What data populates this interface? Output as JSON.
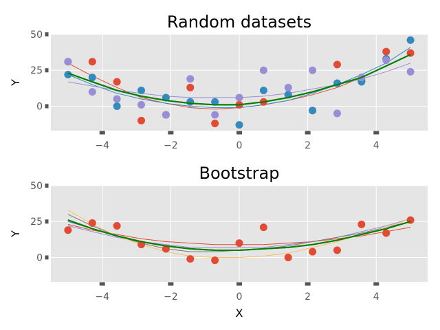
{
  "chart_data": [
    {
      "type": "scatter",
      "title": "Random datasets",
      "xlabel": "",
      "ylabel": "Y",
      "xlim": [
        -5.5,
        5.5
      ],
      "ylim": [
        -17,
        50
      ],
      "xticks": [
        -4,
        -2,
        0,
        2,
        4
      ],
      "xtick_labels": [
        "−4",
        "−2",
        "0",
        "2",
        "4"
      ],
      "yticks": [
        0,
        25,
        50
      ],
      "ytick_labels": [
        "0",
        "25",
        "50"
      ],
      "grid": true,
      "x": [
        -5.0,
        -4.29,
        -3.57,
        -2.86,
        -2.14,
        -1.43,
        -0.71,
        0.0,
        0.71,
        1.43,
        2.14,
        2.86,
        3.57,
        4.29,
        5.0
      ],
      "series": [
        {
          "color": "#e24a33",
          "points": [
            31,
            31,
            17,
            -10,
            -6,
            13,
            -12,
            1,
            3,
            8,
            -3,
            29,
            18,
            38,
            37
          ],
          "fit": [
            30,
            21,
            13,
            6,
            2,
            -1,
            -2,
            -1,
            1,
            4,
            8,
            13,
            20,
            28,
            36
          ]
        },
        {
          "color": "#348abd",
          "points": [
            22,
            20,
            0,
            11,
            6,
            3,
            3,
            -13,
            11,
            8,
            -3,
            16,
            17,
            33,
            46
          ],
          "fit": [
            22,
            15,
            9,
            5,
            2,
            0,
            -1,
            -1,
            1,
            4,
            9,
            15,
            22,
            30,
            41
          ]
        },
        {
          "color": "#988ed5",
          "points": [
            31,
            10,
            5,
            1,
            -6,
            19,
            -6,
            6,
            25,
            13,
            25,
            -5,
            20,
            32,
            24
          ],
          "fit": [
            17,
            14,
            11,
            9,
            7,
            6,
            6,
            6,
            7,
            9,
            12,
            15,
            19,
            24,
            30
          ]
        }
      ],
      "mean_fit": {
        "color": "#007f00",
        "values": [
          23,
          17,
          11,
          7,
          4,
          2,
          1,
          1,
          3,
          6,
          10,
          15,
          20,
          28,
          36
        ]
      }
    },
    {
      "type": "scatter",
      "title": "Bootstrap",
      "xlabel": "X",
      "ylabel": "Y",
      "xlim": [
        -5.5,
        5.5
      ],
      "ylim": [
        -17,
        50
      ],
      "xticks": [
        -4,
        -2,
        0,
        2,
        4
      ],
      "xtick_labels": [
        "−4",
        "−2",
        "0",
        "2",
        "4"
      ],
      "yticks": [
        0,
        25,
        50
      ],
      "ytick_labels": [
        "0",
        "25",
        "50"
      ],
      "grid": true,
      "x": [
        -5.0,
        -4.29,
        -3.57,
        -2.86,
        -2.14,
        -1.43,
        -0.71,
        0.0,
        0.71,
        1.43,
        2.14,
        2.86,
        3.57,
        4.29,
        5.0
      ],
      "series": [
        {
          "color": "#e24a33",
          "points": [
            19,
            24,
            22,
            9,
            6,
            -1,
            -2,
            10,
            21,
            0,
            4,
            5,
            23,
            17,
            26
          ]
        }
      ],
      "fits": [
        {
          "color": "#e24a33",
          "values": [
            23,
            19,
            16,
            13,
            11,
            10,
            9,
            9,
            9,
            10,
            11,
            13,
            15,
            18,
            21
          ]
        },
        {
          "color": "#348abd",
          "values": [
            25,
            20,
            15,
            11,
            8,
            6,
            5,
            5,
            6,
            7,
            9,
            12,
            16,
            20,
            25
          ]
        },
        {
          "color": "#988ed5",
          "values": [
            22,
            18,
            14,
            11,
            9,
            7,
            7,
            7,
            7,
            9,
            11,
            14,
            18,
            22,
            27
          ]
        },
        {
          "color": "#777777",
          "values": [
            30,
            22,
            15,
            10,
            6,
            4,
            4,
            5,
            6,
            8,
            11,
            14,
            17,
            21,
            25
          ]
        },
        {
          "color": "#fbc15e",
          "values": [
            33,
            23,
            15,
            9,
            4,
            1,
            0,
            0,
            1,
            3,
            7,
            11,
            16,
            21,
            27
          ]
        }
      ],
      "mean_fit": {
        "color": "#007f00",
        "values": [
          26,
          20,
          15,
          11,
          8,
          6,
          5,
          5,
          6,
          7,
          9,
          12,
          16,
          20,
          25
        ]
      }
    }
  ]
}
